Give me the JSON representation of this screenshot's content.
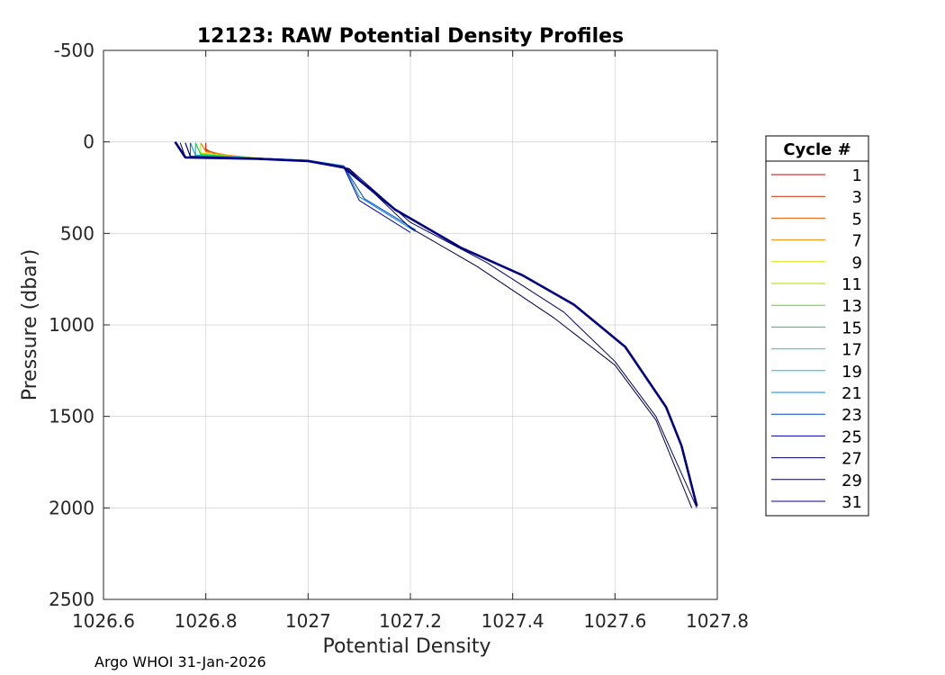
{
  "chart_data": {
    "type": "line",
    "title": "12123: RAW Potential Density Profiles",
    "xlabel": "Potential Density",
    "ylabel": "Pressure (dbar)",
    "xlim": [
      1026.6,
      1027.8
    ],
    "ylim": [
      -500,
      2500
    ],
    "y_reversed": true,
    "grid": true,
    "x_ticks": [
      "1026.6",
      "1026.8",
      "1027",
      "1027.2",
      "1027.4",
      "1027.6",
      "1027.8"
    ],
    "y_ticks": [
      "-500",
      "0",
      "500",
      "1000",
      "1500",
      "2000",
      "2500"
    ],
    "legend": {
      "title": "Cycle #",
      "position": "right outside"
    },
    "footer": "Argo WHOI 31-Jan-2026",
    "series": [
      {
        "name": "1",
        "color": "#cc0000",
        "x": [
          1026.8,
          1026.8,
          1026.82,
          1026.88
        ],
        "y": [
          5,
          40,
          70,
          85
        ]
      },
      {
        "name": "3",
        "color": "#dd2200",
        "x": [
          1026.8,
          1026.8,
          1026.83,
          1026.88
        ],
        "y": [
          5,
          45,
          70,
          85
        ]
      },
      {
        "name": "5",
        "color": "#ee5500",
        "x": [
          1026.79,
          1026.8,
          1026.84,
          1026.9
        ],
        "y": [
          5,
          50,
          72,
          88
        ]
      },
      {
        "name": "7",
        "color": "#ee8800",
        "x": [
          1026.79,
          1026.8,
          1026.85,
          1026.9
        ],
        "y": [
          5,
          55,
          75,
          88
        ]
      },
      {
        "name": "9",
        "color": "#dddd00",
        "x": [
          1026.79,
          1026.79,
          1026.85,
          1026.9
        ],
        "y": [
          5,
          60,
          78,
          88
        ]
      },
      {
        "name": "11",
        "color": "#aadd00",
        "x": [
          1026.79,
          1026.79,
          1026.86,
          1026.9
        ],
        "y": [
          5,
          65,
          80,
          88
        ]
      },
      {
        "name": "13",
        "color": "#55dd00",
        "x": [
          1026.78,
          1026.79,
          1026.86,
          1026.9
        ],
        "y": [
          5,
          68,
          82,
          90
        ]
      },
      {
        "name": "15",
        "color": "#00dd44",
        "x": [
          1026.78,
          1026.79,
          1026.87,
          1026.9
        ],
        "y": [
          5,
          70,
          84,
          90
        ]
      },
      {
        "name": "17",
        "color": "#00ddaa",
        "x": [
          1026.78,
          1026.78,
          1026.87,
          1026.92
        ],
        "y": [
          5,
          72,
          85,
          92
        ]
      },
      {
        "name": "19",
        "color": "#00cccc",
        "x": [
          1026.78,
          1026.78,
          1026.88,
          1026.93
        ],
        "y": [
          5,
          74,
          86,
          92
        ]
      },
      {
        "name": "21",
        "color": "#0088dd",
        "x": [
          1026.77,
          1026.78,
          1026.9,
          1027.0,
          1027.07,
          1027.1,
          1027.21
        ],
        "y": [
          5,
          76,
          88,
          100,
          130,
          300,
          490
        ]
      },
      {
        "name": "23",
        "color": "#0044cc",
        "x": [
          1026.77,
          1026.77,
          1026.9,
          1027.0,
          1027.07,
          1027.11,
          1027.21
        ],
        "y": [
          5,
          78,
          88,
          100,
          135,
          310,
          480
        ]
      },
      {
        "name": "25",
        "color": "#0000aa",
        "x": [
          1026.76,
          1026.77,
          1026.9,
          1027.0,
          1027.07,
          1027.1,
          1027.2
        ],
        "y": [
          5,
          80,
          90,
          102,
          140,
          320,
          495
        ]
      },
      {
        "name": "27",
        "color": "#000066",
        "x": [
          1026.76,
          1026.77,
          1026.9,
          1027.0,
          1027.08,
          1027.2,
          1027.35,
          1027.5,
          1027.6,
          1027.68,
          1027.76
        ],
        "y": [
          5,
          82,
          90,
          103,
          145,
          440,
          660,
          930,
          1200,
          1500,
          2000
        ]
      },
      {
        "name": "29",
        "color": "#000044",
        "x": [
          1026.75,
          1026.76,
          1026.9,
          1027.0,
          1027.08,
          1027.2,
          1027.33,
          1027.48,
          1027.6,
          1027.68,
          1027.75
        ],
        "y": [
          5,
          84,
          92,
          104,
          150,
          470,
          680,
          960,
          1220,
          1520,
          2000
        ]
      },
      {
        "name": "31",
        "color": "#000080",
        "x": [
          1026.74,
          1026.76,
          1026.9,
          1027.0,
          1027.07,
          1027.17,
          1027.3,
          1027.42,
          1027.52,
          1027.62,
          1027.7,
          1027.73,
          1027.76
        ],
        "y": [
          0,
          85,
          92,
          105,
          140,
          370,
          580,
          730,
          890,
          1120,
          1450,
          1660,
          1990
        ]
      }
    ]
  }
}
